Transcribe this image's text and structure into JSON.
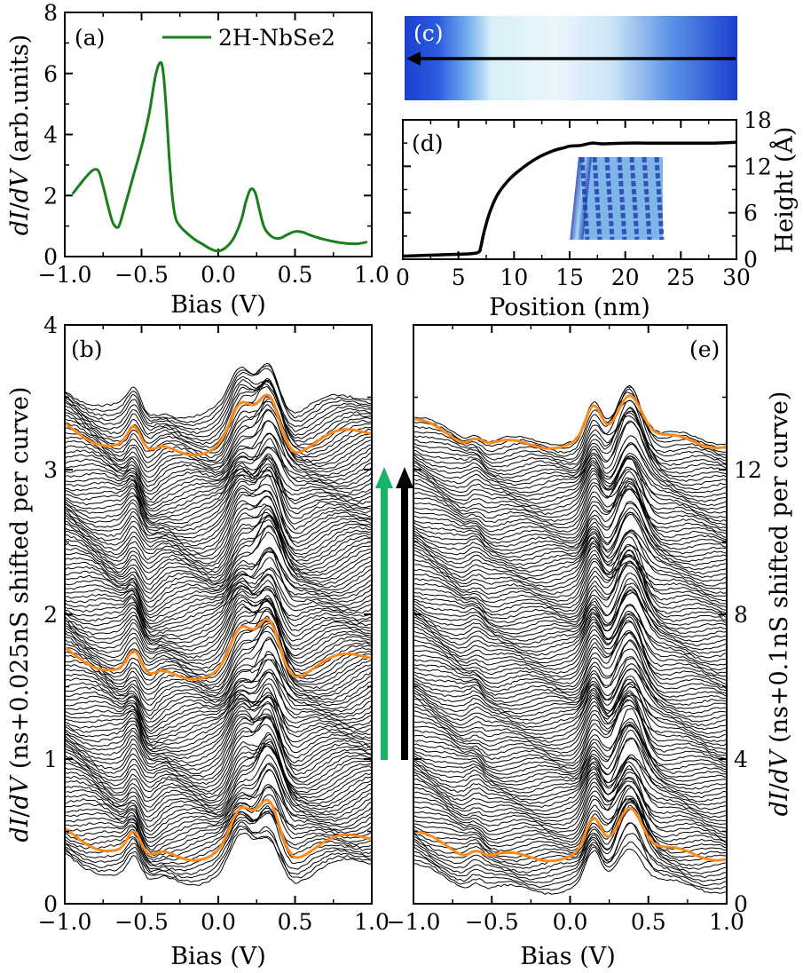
{
  "colors": {
    "green": "#1a7f1a",
    "orange": "#ff8a1a",
    "black": "#000000",
    "arrow_green": "#18b46a",
    "stm_dark": "#1b3fd0",
    "stm_light": "#eaf6fb"
  },
  "chart_data": [
    {
      "id": "a",
      "panel_label": "(a)",
      "type": "line",
      "xlabel": "Bias (V)",
      "ylabel": "dI/dV (arb.units)",
      "xlim": [
        -1.0,
        1.0
      ],
      "ylim": [
        0,
        8
      ],
      "xticks": [
        "−1.0",
        "−0.5",
        "0.0",
        "0.5",
        "1.0"
      ],
      "yticks": [
        "0",
        "2",
        "4",
        "6",
        "8"
      ],
      "legend": "2H-NbSe2",
      "series": [
        {
          "name": "2H-NbSe2",
          "x": [
            -0.95,
            -0.88,
            -0.82,
            -0.78,
            -0.75,
            -0.72,
            -0.69,
            -0.66,
            -0.64,
            -0.6,
            -0.55,
            -0.5,
            -0.45,
            -0.41,
            -0.38,
            -0.36,
            -0.34,
            -0.32,
            -0.3,
            -0.28,
            -0.25,
            -0.2,
            -0.15,
            -0.1,
            -0.05,
            0.0,
            0.05,
            0.1,
            0.15,
            0.18,
            0.21,
            0.24,
            0.27,
            0.3,
            0.35,
            0.4,
            0.45,
            0.5,
            0.55,
            0.6,
            0.7,
            0.8,
            0.9,
            0.97
          ],
          "y": [
            2.05,
            2.5,
            2.82,
            2.8,
            2.3,
            1.7,
            1.15,
            0.95,
            1.1,
            1.8,
            2.7,
            3.6,
            4.7,
            5.9,
            6.35,
            6.1,
            4.9,
            3.3,
            2.0,
            1.3,
            1.0,
            0.75,
            0.55,
            0.4,
            0.25,
            0.18,
            0.3,
            0.6,
            1.2,
            1.8,
            2.2,
            2.1,
            1.5,
            0.95,
            0.65,
            0.6,
            0.72,
            0.82,
            0.8,
            0.7,
            0.55,
            0.45,
            0.42,
            0.48
          ]
        }
      ]
    },
    {
      "id": "c",
      "panel_label": "(c)",
      "type": "heatmap",
      "description_arrow": "scan direction right-to-left"
    },
    {
      "id": "d",
      "panel_label": "(d)",
      "type": "line",
      "xlabel": "Position (nm)",
      "ylabel": "Height (Å)",
      "xlim": [
        0,
        30
      ],
      "ylim": [
        0,
        18
      ],
      "xticks": [
        "0",
        "5",
        "10",
        "15",
        "20",
        "25",
        "30"
      ],
      "yticks": [
        "0",
        "6",
        "12",
        "18"
      ],
      "series": [
        {
          "name": "height profile",
          "x": [
            0,
            2,
            4,
            6,
            6.8,
            7.0,
            7.3,
            7.8,
            8.5,
            9.5,
            10.5,
            12,
            13.5,
            14.5,
            15,
            16,
            17,
            18,
            20,
            22,
            24,
            26,
            28,
            30
          ],
          "y": [
            0.4,
            0.5,
            0.6,
            0.7,
            0.9,
            1.5,
            3.5,
            6.0,
            8.3,
            10.2,
            11.5,
            13.0,
            14.0,
            14.4,
            14.6,
            14.7,
            15.0,
            14.9,
            15.0,
            15.0,
            15.0,
            15.0,
            15.0,
            15.1
          ]
        }
      ]
    },
    {
      "id": "b",
      "panel_label": "(b)",
      "type": "line",
      "xlabel": "Bias (V)",
      "ylabel": "dI/dV (ns+0.025nS shifted per curve)",
      "xlim": [
        -1.0,
        1.0
      ],
      "ylim": [
        0,
        4
      ],
      "xticks": [
        "−1.0",
        "−0.5",
        "0.0",
        "0.5",
        "1.0"
      ],
      "yticks": [
        "0",
        "1",
        "2",
        "3",
        "4"
      ],
      "curve_count": 130,
      "offset_per_curve": 0.025,
      "highlighted_offsets": [
        0.35,
        1.6,
        3.15
      ]
    },
    {
      "id": "e",
      "panel_label": "(e)",
      "type": "line",
      "xlabel": "Bias (V)",
      "ylabel": "dI/dV (ns+0.1nS shifted per curve)",
      "xlim": [
        -1.0,
        1.0
      ],
      "ylim": [
        0,
        16
      ],
      "xticks": [
        "−1.0",
        "−0.5",
        "0.0",
        "0.5",
        "1.0"
      ],
      "yticks": [
        "0",
        "4",
        "8",
        "12"
      ],
      "curve_count": 125,
      "offset_per_curve": 0.1,
      "highlighted_offsets": [
        1.3,
        12.7
      ]
    }
  ]
}
